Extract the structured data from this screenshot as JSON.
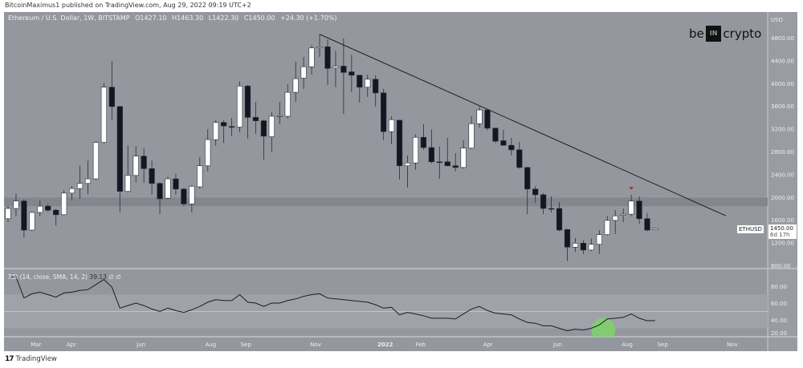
{
  "header": {
    "published": "BitcoinMaximus1 published on TradingView.com, Aug 29, 2022 09:19 UTC+2"
  },
  "legend": {
    "symbol": "Ethereum / U.S. Dollar, 1W, BITSTAMP",
    "open": "O1427.10",
    "high": "H1463.30",
    "low": "L1422.30",
    "close": "C1450.00",
    "change": "+24.30 (+1.70%)"
  },
  "rsi_legend": {
    "label": "RSI (14, close, SMA, 14, 2)",
    "value": "39.13",
    "extra1": "∅",
    "extra2": "∅"
  },
  "logo": {
    "text_left": "be",
    "text_box": "IN",
    "text_right": "crypto"
  },
  "footer": {
    "brand": "TradingView",
    "icon": "tradingview-logo-icon"
  },
  "price_label": {
    "symbol": "ETHUSD",
    "price": "1450.00",
    "countdown": "6d 17h"
  },
  "colors": {
    "background": "#95979f",
    "bull": "#ffffff",
    "bear": "#131722",
    "resistance_band": "#84868e",
    "rsi_band": "#a0a2a9",
    "rsi_line": "#1c1c24",
    "marker": "#e02020",
    "highlight": "#7fd36b"
  },
  "chart_data": {
    "type": "candlestick",
    "interval": "1W",
    "currency": "USD",
    "y_ticks": [
      4800,
      4400,
      4000,
      3600,
      3200,
      2800,
      2400,
      2000,
      1600,
      1200,
      800
    ],
    "ylim": [
      800,
      4800
    ],
    "x_ticks": [
      {
        "label": "Mar",
        "date": "2021-03-01"
      },
      {
        "label": "Apr",
        "date": "2021-04-01"
      },
      {
        "label": "Jun",
        "date": "2021-06-01"
      },
      {
        "label": "Aug",
        "date": "2021-08-01"
      },
      {
        "label": "Sep",
        "date": "2021-09-01"
      },
      {
        "label": "Nov",
        "date": "2021-11-01"
      },
      {
        "label": "2022",
        "date": "2022-01-01"
      },
      {
        "label": "Feb",
        "date": "2022-02-01"
      },
      {
        "label": "Apr",
        "date": "2022-04-01"
      },
      {
        "label": "Jun",
        "date": "2022-06-01"
      },
      {
        "label": "Aug",
        "date": "2022-08-01"
      },
      {
        "label": "Sep",
        "date": "2022-09-01"
      },
      {
        "label": "Nov",
        "date": "2022-11-01"
      }
    ],
    "candles": [
      [
        "2021-02-08",
        1620,
        1840,
        1560,
        1800
      ],
      [
        "2021-02-15",
        1800,
        2060,
        1660,
        1930
      ],
      [
        "2021-02-22",
        1930,
        1960,
        1290,
        1420
      ],
      [
        "2021-03-01",
        1420,
        1750,
        1400,
        1730
      ],
      [
        "2021-03-08",
        1730,
        1940,
        1660,
        1840
      ],
      [
        "2021-03-15",
        1840,
        1880,
        1740,
        1770
      ],
      [
        "2021-03-22",
        1770,
        1790,
        1500,
        1690
      ],
      [
        "2021-03-29",
        1690,
        2120,
        1680,
        2070
      ],
      [
        "2021-04-05",
        2070,
        2190,
        1940,
        2150
      ],
      [
        "2021-04-12",
        2150,
        2550,
        1970,
        2240
      ],
      [
        "2021-04-19",
        2240,
        2640,
        2050,
        2320
      ],
      [
        "2021-04-26",
        2320,
        2980,
        2300,
        2960
      ],
      [
        "2021-05-03",
        2960,
        4000,
        2940,
        3930
      ],
      [
        "2021-05-10",
        3930,
        4390,
        3350,
        3590
      ],
      [
        "2021-05-17",
        3590,
        3600,
        1730,
        2100
      ],
      [
        "2021-05-24",
        2100,
        2910,
        2080,
        2380
      ],
      [
        "2021-05-31",
        2380,
        2890,
        2260,
        2720
      ],
      [
        "2021-06-07",
        2720,
        2860,
        2250,
        2500
      ],
      [
        "2021-06-14",
        2500,
        2640,
        2040,
        2240
      ],
      [
        "2021-06-21",
        2240,
        2260,
        1700,
        1970
      ],
      [
        "2021-06-28",
        1980,
        2360,
        1960,
        2320
      ],
      [
        "2021-07-05",
        2320,
        2410,
        2040,
        2140
      ],
      [
        "2021-07-12",
        2140,
        2160,
        1840,
        1880
      ],
      [
        "2021-07-19",
        1880,
        2210,
        1730,
        2190
      ],
      [
        "2021-07-26",
        2180,
        2700,
        2150,
        2550
      ],
      [
        "2021-08-02",
        2550,
        3190,
        2450,
        3010
      ],
      [
        "2021-08-09",
        3010,
        3350,
        2900,
        3310
      ],
      [
        "2021-08-16",
        3310,
        3350,
        2950,
        3250
      ],
      [
        "2021-08-23",
        3240,
        3390,
        3070,
        3230
      ],
      [
        "2021-08-30",
        3230,
        4030,
        3140,
        3950
      ],
      [
        "2021-09-06",
        3950,
        3970,
        3030,
        3400
      ],
      [
        "2021-09-13",
        3400,
        3670,
        3110,
        3340
      ],
      [
        "2021-09-20",
        3340,
        3360,
        2660,
        3070
      ],
      [
        "2021-09-27",
        3060,
        3490,
        2790,
        3420
      ],
      [
        "2021-10-04",
        3420,
        3670,
        3280,
        3430
      ],
      [
        "2021-10-11",
        3420,
        3980,
        3380,
        3840
      ],
      [
        "2021-10-18",
        3840,
        4380,
        3670,
        4080
      ],
      [
        "2021-10-25",
        4090,
        4460,
        3900,
        4290
      ],
      [
        "2021-11-01",
        4290,
        4670,
        4150,
        4620
      ],
      [
        "2021-11-08",
        4620,
        4860,
        4460,
        4640
      ],
      [
        "2021-11-15",
        4640,
        4770,
        3970,
        4260
      ],
      [
        "2021-11-22",
        4270,
        4570,
        3930,
        4300
      ],
      [
        "2021-11-29",
        4300,
        4790,
        3460,
        4190
      ],
      [
        "2021-12-06",
        4200,
        4500,
        3840,
        4140
      ],
      [
        "2021-12-13",
        4140,
        4140,
        3660,
        3930
      ],
      [
        "2021-12-20",
        3930,
        4150,
        3760,
        4070
      ],
      [
        "2021-12-27",
        4070,
        4140,
        3590,
        3830
      ],
      [
        "2022-01-03",
        3830,
        3900,
        3000,
        3150
      ],
      [
        "2022-01-10",
        3150,
        3420,
        2930,
        3360
      ],
      [
        "2022-01-17",
        3350,
        3360,
        2310,
        2550
      ],
      [
        "2022-01-24",
        2550,
        2730,
        2170,
        2600
      ],
      [
        "2022-01-31",
        2600,
        3100,
        2480,
        3050
      ],
      [
        "2022-02-07",
        3050,
        3280,
        2830,
        2870
      ],
      [
        "2022-02-14",
        2870,
        3190,
        2590,
        2620
      ],
      [
        "2022-02-21",
        2620,
        2890,
        2320,
        2610
      ],
      [
        "2022-02-28",
        2620,
        3040,
        2540,
        2550
      ],
      [
        "2022-03-07",
        2550,
        2770,
        2450,
        2520
      ],
      [
        "2022-03-14",
        2520,
        3000,
        2500,
        2860
      ],
      [
        "2022-03-21",
        2860,
        3420,
        2840,
        3290
      ],
      [
        "2022-03-28",
        3290,
        3590,
        3220,
        3530
      ],
      [
        "2022-04-04",
        3530,
        3550,
        3170,
        3210
      ],
      [
        "2022-04-11",
        3210,
        3220,
        2950,
        2980
      ],
      [
        "2022-04-18",
        2990,
        3180,
        2900,
        2910
      ],
      [
        "2022-04-25",
        2910,
        3040,
        2730,
        2830
      ],
      [
        "2022-05-02",
        2830,
        2970,
        2500,
        2520
      ],
      [
        "2022-05-09",
        2520,
        2530,
        1700,
        2140
      ],
      [
        "2022-05-16",
        2140,
        2190,
        1900,
        2040
      ],
      [
        "2022-05-23",
        2040,
        2070,
        1700,
        1800
      ],
      [
        "2022-05-30",
        1800,
        2010,
        1730,
        1790
      ],
      [
        "2022-06-06",
        1800,
        1910,
        1400,
        1420
      ],
      [
        "2022-06-13",
        1430,
        1440,
        880,
        1120
      ],
      [
        "2022-06-20",
        1120,
        1280,
        1040,
        1190
      ],
      [
        "2022-06-27",
        1190,
        1240,
        1000,
        1070
      ],
      [
        "2022-07-04",
        1070,
        1270,
        1050,
        1170
      ],
      [
        "2022-07-11",
        1170,
        1420,
        1000,
        1340
      ],
      [
        "2022-07-18",
        1340,
        1670,
        1320,
        1590
      ],
      [
        "2022-07-25",
        1590,
        1770,
        1350,
        1670
      ],
      [
        "2022-08-01",
        1680,
        1800,
        1560,
        1700
      ],
      [
        "2022-08-08",
        1700,
        2040,
        1660,
        1930
      ],
      [
        "2022-08-15",
        1930,
        2010,
        1530,
        1620
      ],
      [
        "2022-08-22",
        1620,
        1720,
        1400,
        1420
      ],
      [
        "2022-08-29",
        1427.1,
        1463.3,
        1422.3,
        1450.0
      ]
    ],
    "resistance_band": [
      1840,
      1990
    ],
    "trendline": [
      {
        "date": "2021-11-08",
        "price": 4860
      },
      {
        "date": "2022-10-30",
        "price": 1670
      }
    ],
    "marker": {
      "type": "red-triangle-down",
      "date": "2022-08-08"
    },
    "rsi": {
      "ylim": [
        20,
        95
      ],
      "y_ticks": [
        80,
        60,
        40,
        20
      ],
      "band": [
        30,
        70
      ],
      "midline": 50,
      "values": [
        91,
        91,
        66,
        71,
        73,
        70,
        67,
        72,
        73,
        75,
        76,
        82,
        88,
        79,
        54,
        57,
        60,
        57,
        53,
        50,
        54,
        51,
        49,
        52,
        56,
        61,
        64,
        63,
        63,
        70,
        61,
        60,
        56,
        60,
        60,
        63,
        65,
        68,
        70,
        71,
        66,
        65,
        64,
        63,
        62,
        61,
        58,
        54,
        55,
        46,
        49,
        47,
        45,
        42,
        42,
        42,
        41,
        47,
        53,
        56,
        51,
        48,
        47,
        46,
        41,
        37,
        36,
        33,
        33,
        30,
        27,
        29,
        28,
        30,
        34,
        41,
        42,
        43,
        47,
        42,
        39,
        39.13
      ],
      "highlight_date": "2022-06-27"
    }
  }
}
